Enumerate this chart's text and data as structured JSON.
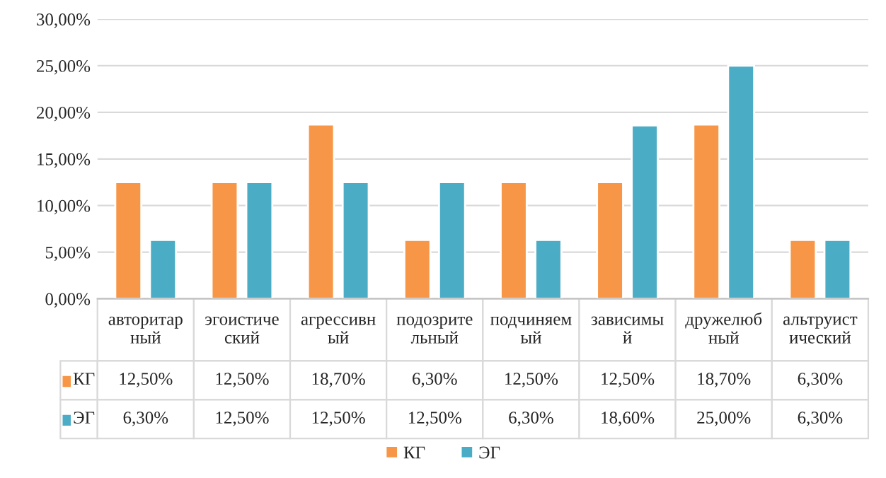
{
  "chart_data": {
    "type": "bar",
    "categories": [
      "авторитар\nный",
      "эгоистиче\nский",
      "агрессивн\nый",
      "подозрите\nльный",
      "подчиняем\nый",
      "зависимы\nй",
      "дружелюб\nный",
      "альтруист\nический"
    ],
    "series": [
      {
        "name": "КГ",
        "color": "#f79646",
        "values": [
          12.5,
          12.5,
          18.7,
          6.3,
          12.5,
          12.5,
          18.7,
          6.3
        ],
        "value_labels": [
          "12,50%",
          "12,50%",
          "18,70%",
          "6,30%",
          "12,50%",
          "12,50%",
          "18,70%",
          "6,30%"
        ]
      },
      {
        "name": "ЭГ",
        "color": "#4bacc6",
        "values": [
          6.3,
          12.5,
          12.5,
          12.5,
          6.3,
          18.6,
          25.0,
          6.3
        ],
        "value_labels": [
          "6,30%",
          "12,50%",
          "12,50%",
          "12,50%",
          "6,30%",
          "18,60%",
          "25,00%",
          "6,30%"
        ]
      }
    ],
    "ylim": [
      0,
      30
    ],
    "yticks": [
      {
        "value": 0,
        "label": "0,00%"
      },
      {
        "value": 5,
        "label": "5,00%"
      },
      {
        "value": 10,
        "label": "10,00%"
      },
      {
        "value": 15,
        "label": "15,00%"
      },
      {
        "value": 20,
        "label": "20,00%"
      },
      {
        "value": 25,
        "label": "25,00%"
      },
      {
        "value": 30,
        "label": "30,00%"
      }
    ],
    "grid": "y",
    "legend": "bottom"
  }
}
